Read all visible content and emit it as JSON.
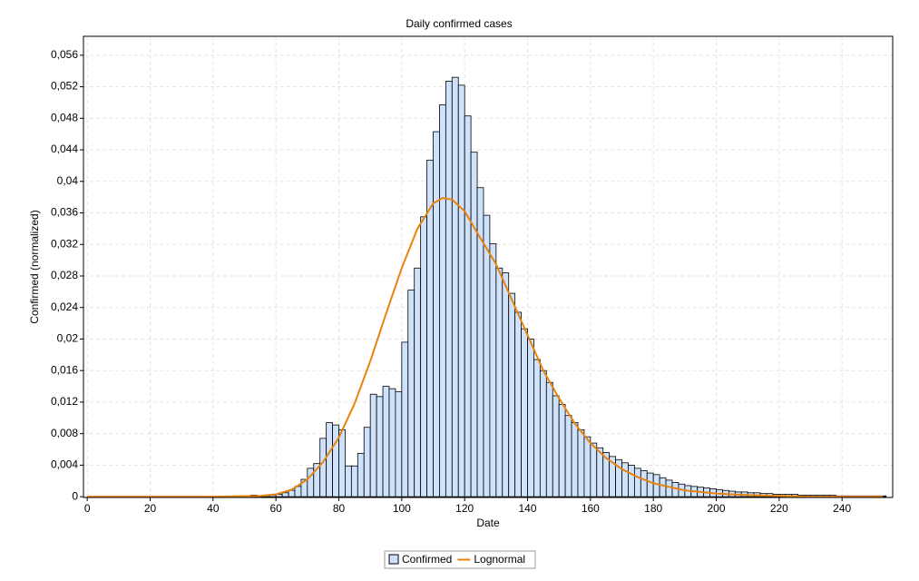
{
  "chart_data": {
    "type": "histogram",
    "title": "Daily confirmed cases",
    "xlabel": "Date",
    "ylabel": "Confirmed (normalized)",
    "xlim": [
      -1.2,
      256.1
    ],
    "ylim": [
      -0.0001,
      0.0584
    ],
    "xticks": [
      0,
      20,
      40,
      60,
      80,
      100,
      120,
      140,
      160,
      180,
      200,
      220,
      240
    ],
    "yticks": [
      0,
      {
        "value": 0.004,
        "label": "0,004"
      },
      {
        "value": 0.008,
        "label": "0,008"
      },
      {
        "value": 0.012,
        "label": "0,012"
      },
      {
        "value": 0.016,
        "label": "0,016"
      },
      {
        "value": 0.02,
        "label": "0,02"
      },
      {
        "value": 0.024,
        "label": "0,024"
      },
      {
        "value": 0.028,
        "label": "0,028"
      },
      {
        "value": 0.032,
        "label": "0,032"
      },
      {
        "value": 0.036,
        "label": "0,036"
      },
      {
        "value": 0.04,
        "label": "0,04"
      },
      {
        "value": 0.044,
        "label": "0,044"
      },
      {
        "value": 0.048,
        "label": "0,048"
      },
      {
        "value": 0.052,
        "label": "0,052"
      },
      {
        "value": 0.056,
        "label": "0,056"
      }
    ],
    "grid": true,
    "series": [
      {
        "name": "Confirmed",
        "type": "histogram",
        "color": "#cfe2fb",
        "edgecolor": "#000000",
        "bins": [
          0,
          2,
          4,
          6,
          8,
          10,
          12,
          14,
          16,
          18,
          20,
          22,
          24,
          26,
          28,
          30,
          32,
          34,
          36,
          38,
          40,
          42,
          44,
          46,
          48,
          50,
          52,
          54,
          56,
          58,
          60,
          62,
          64,
          66,
          68,
          70,
          72,
          74,
          76,
          78,
          80,
          82,
          84,
          86,
          88,
          90,
          92,
          94,
          96,
          98,
          100,
          102,
          104,
          106,
          108,
          110,
          112,
          114,
          116,
          118,
          120,
          122,
          124,
          126,
          128,
          130,
          132,
          134,
          136,
          138,
          140,
          142,
          144,
          146,
          148,
          150,
          152,
          154,
          156,
          158,
          160,
          162,
          164,
          166,
          168,
          170,
          172,
          174,
          176,
          178,
          180,
          182,
          184,
          186,
          188,
          190,
          192,
          194,
          196,
          198,
          200,
          202,
          204,
          206,
          208,
          210,
          212,
          214,
          216,
          218,
          220,
          222,
          224,
          226,
          228,
          230,
          232,
          234,
          236,
          238,
          240,
          242,
          244,
          246,
          248,
          250,
          252,
          254
        ],
        "values": [
          0,
          0,
          0,
          0,
          0,
          0,
          0,
          0,
          0,
          0,
          0,
          0,
          0,
          0,
          0,
          0,
          0,
          0,
          0,
          0,
          0,
          0,
          0,
          0,
          0,
          0,
          0.0002,
          0.0001,
          0.0002,
          0.0002,
          0.0003,
          0.0005,
          0.0008,
          0.0013,
          0.0022,
          0.0036,
          0.0042,
          0.0074,
          0.0094,
          0.0091,
          0.0085,
          0.0039,
          0.0039,
          0.0055,
          0.0088,
          0.013,
          0.0127,
          0.014,
          0.0137,
          0.0133,
          0.0196,
          0.0262,
          0.029,
          0.0355,
          0.0427,
          0.0463,
          0.0497,
          0.0527,
          0.0532,
          0.0522,
          0.0483,
          0.0437,
          0.0392,
          0.0357,
          0.0321,
          0.029,
          0.0284,
          0.0258,
          0.0234,
          0.0213,
          0.02,
          0.0174,
          0.016,
          0.0145,
          0.0128,
          0.0117,
          0.0103,
          0.0094,
          0.0085,
          0.0076,
          0.0068,
          0.0062,
          0.0056,
          0.0051,
          0.0047,
          0.0043,
          0.004,
          0.0036,
          0.0033,
          0.003,
          0.0028,
          0.0024,
          0.0021,
          0.0018,
          0.0016,
          0.0014,
          0.0013,
          0.0012,
          0.0011,
          0.001,
          0.0009,
          0.0008,
          0.0007,
          0.0006,
          0.0006,
          0.0005,
          0.0005,
          0.0004,
          0.0004,
          0.0003,
          0.0003,
          0.0003,
          0.0003,
          0.0002,
          0.0002,
          0.0002,
          0.0002,
          0.0002,
          0.0002,
          0.0001,
          0.0001,
          0.0001,
          0.0001,
          0.0001,
          0.0001,
          0.0001,
          0.0001
        ]
      },
      {
        "name": "Lognormal",
        "type": "line",
        "color": "#e8820c",
        "x": [
          0,
          40,
          55,
          60,
          65,
          70,
          75,
          80,
          85,
          90,
          95,
          100,
          105,
          110,
          113,
          116,
          120,
          125,
          130,
          135,
          140,
          145,
          150,
          155,
          160,
          165,
          170,
          175,
          180,
          190,
          200,
          210,
          220,
          230,
          240,
          253
        ],
        "values": [
          0,
          0,
          0.0001,
          0.0003,
          0.0009,
          0.0022,
          0.0044,
          0.0075,
          0.0118,
          0.0172,
          0.0232,
          0.029,
          0.034,
          0.0372,
          0.0379,
          0.0377,
          0.0362,
          0.0328,
          0.0295,
          0.025,
          0.0205,
          0.016,
          0.0125,
          0.0093,
          0.0068,
          0.0049,
          0.0035,
          0.0025,
          0.0017,
          0.0008,
          0.0004,
          0.0002,
          0.0001,
          0,
          0,
          0
        ]
      }
    ]
  }
}
